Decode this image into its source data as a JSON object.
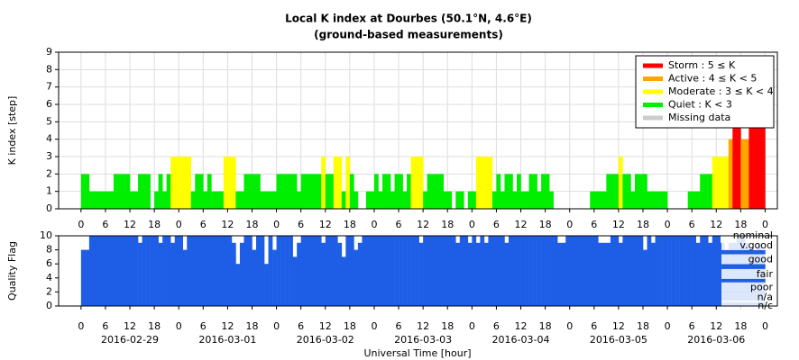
{
  "chart_data": [
    {
      "type": "bar",
      "title": "Local K index at Dourbes (50.1°N, 4.6°E)",
      "subtitle": "(ground-based measurements)",
      "y_label": "K index [step]",
      "x": [
        0,
        1,
        2,
        3,
        4,
        5,
        6,
        7,
        8,
        9,
        10,
        11,
        12,
        13,
        14,
        15,
        16,
        17,
        18,
        19,
        20,
        21,
        22,
        23,
        24,
        25,
        26,
        27,
        28,
        29,
        30,
        31,
        32,
        33,
        34,
        35,
        36,
        37,
        38,
        39,
        40,
        41,
        42,
        43,
        44,
        45,
        46,
        47,
        48,
        49,
        50,
        51,
        52,
        53,
        54,
        55,
        56,
        57,
        58,
        59,
        60,
        61,
        62,
        63,
        64,
        65,
        66,
        67,
        68,
        69,
        70,
        71,
        72,
        73,
        74,
        75,
        76,
        77,
        78,
        79,
        80,
        81,
        82,
        83,
        84,
        85,
        86,
        87,
        88,
        89,
        90,
        91,
        92,
        93,
        94,
        95,
        96,
        97,
        98,
        99,
        100,
        101,
        102,
        103,
        104,
        105,
        106,
        107,
        108,
        109,
        110,
        111,
        112,
        113,
        114,
        115,
        116,
        117,
        118,
        119,
        120,
        121,
        122,
        123,
        124,
        125,
        126,
        127,
        128,
        129,
        130,
        131,
        132,
        133,
        134,
        135,
        136,
        137,
        138,
        139,
        140,
        141,
        142,
        143,
        144,
        145,
        146,
        147,
        148,
        149,
        150,
        151,
        152,
        153,
        154,
        155,
        156,
        157,
        158,
        159,
        160,
        161,
        162,
        163,
        164,
        165,
        166,
        167
      ],
      "values": [
        2,
        2,
        1,
        1,
        1,
        1,
        1,
        1,
        2,
        2,
        2,
        2,
        1,
        1,
        2,
        2,
        2,
        0,
        1,
        2,
        1,
        2,
        3,
        3,
        3,
        3,
        3,
        1,
        2,
        2,
        1,
        2,
        1,
        1,
        1,
        3,
        3,
        3,
        1,
        1,
        2,
        2,
        2,
        2,
        1,
        1,
        1,
        1,
        2,
        2,
        2,
        2,
        2,
        1,
        2,
        2,
        2,
        2,
        2,
        3,
        2,
        2,
        3,
        3,
        1,
        3,
        2,
        1,
        0,
        0,
        1,
        1,
        2,
        1,
        2,
        2,
        1,
        2,
        2,
        1,
        2,
        3,
        3,
        3,
        1,
        2,
        2,
        2,
        2,
        1,
        1,
        0,
        1,
        1,
        0,
        1,
        1,
        3,
        3,
        3,
        3,
        1,
        2,
        1,
        2,
        2,
        1,
        2,
        1,
        1,
        2,
        2,
        1,
        2,
        2,
        1,
        0,
        0,
        0,
        0,
        0,
        0,
        0,
        0,
        0,
        1,
        1,
        1,
        1,
        2,
        2,
        2,
        3,
        2,
        2,
        1,
        2,
        2,
        2,
        1,
        1,
        1,
        1,
        1,
        0,
        0,
        0,
        0,
        0,
        1,
        1,
        1,
        2,
        2,
        2,
        3,
        3,
        3,
        3,
        4,
        5,
        5,
        4,
        4,
        5,
        5,
        5,
        5
      ],
      "legend": [
        {
          "name": "Storm : 5 ≤ K",
          "color": "#ff0000",
          "min": 5
        },
        {
          "name": "Active : 4 ≤ K < 5",
          "color": "#ffa500",
          "min": 4
        },
        {
          "name": "Moderate : 3 ≤ K < 4",
          "color": "#ffff00",
          "min": 3
        },
        {
          "name": "Quiet : K < 3",
          "color": "#00ee00",
          "min": 0
        },
        {
          "name": "Missing data",
          "color": "#cccccc"
        }
      ],
      "legend_position": "upper right",
      "xlim": [
        -5.5,
        171
      ],
      "ylim": [
        0,
        9
      ],
      "yticks": [
        0,
        1,
        2,
        3,
        4,
        5,
        6,
        7,
        8,
        9
      ],
      "xticks": [
        0,
        6,
        12,
        18,
        {
          "value": 24,
          "label": "0"
        },
        {
          "value": 30,
          "label": "6"
        },
        {
          "value": 36,
          "label": "12"
        },
        {
          "value": 42,
          "label": "18"
        },
        {
          "value": 48,
          "label": "0"
        },
        {
          "value": 54,
          "label": "6"
        },
        {
          "value": 60,
          "label": "12"
        },
        {
          "value": 66,
          "label": "18"
        },
        {
          "value": 72,
          "label": "0"
        },
        {
          "value": 78,
          "label": "6"
        },
        {
          "value": 84,
          "label": "12"
        },
        {
          "value": 90,
          "label": "18"
        },
        {
          "value": 96,
          "label": "0"
        },
        {
          "value": 102,
          "label": "6"
        },
        {
          "value": 108,
          "label": "12"
        },
        {
          "value": 114,
          "label": "18"
        },
        {
          "value": 120,
          "label": "0"
        },
        {
          "value": 126,
          "label": "6"
        },
        {
          "value": 132,
          "label": "12"
        },
        {
          "value": 138,
          "label": "18"
        },
        {
          "value": 144,
          "label": "0"
        },
        {
          "value": 150,
          "label": "6"
        },
        {
          "value": 156,
          "label": "12"
        },
        {
          "value": 162,
          "label": "18"
        },
        {
          "value": 168,
          "label": "0"
        }
      ],
      "grid": true
    },
    {
      "type": "bar",
      "y_label": "Quality Flag",
      "x_label": "Universal Time [hour]",
      "color": "#1e5ee6",
      "x": [
        0,
        1,
        2,
        3,
        4,
        5,
        6,
        7,
        8,
        9,
        10,
        11,
        12,
        13,
        14,
        15,
        16,
        17,
        18,
        19,
        20,
        21,
        22,
        23,
        24,
        25,
        26,
        27,
        28,
        29,
        30,
        31,
        32,
        33,
        34,
        35,
        36,
        37,
        38,
        39,
        40,
        41,
        42,
        43,
        44,
        45,
        46,
        47,
        48,
        49,
        50,
        51,
        52,
        53,
        54,
        55,
        56,
        57,
        58,
        59,
        60,
        61,
        62,
        63,
        64,
        65,
        66,
        67,
        68,
        69,
        70,
        71,
        72,
        73,
        74,
        75,
        76,
        77,
        78,
        79,
        80,
        81,
        82,
        83,
        84,
        85,
        86,
        87,
        88,
        89,
        90,
        91,
        92,
        93,
        94,
        95,
        96,
        97,
        98,
        99,
        100,
        101,
        102,
        103,
        104,
        105,
        106,
        107,
        108,
        109,
        110,
        111,
        112,
        113,
        114,
        115,
        116,
        117,
        118,
        119,
        120,
        121,
        122,
        123,
        124,
        125,
        126,
        127,
        128,
        129,
        130,
        131,
        132,
        133,
        134,
        135,
        136,
        137,
        138,
        139,
        140,
        141,
        142,
        143,
        144,
        145,
        146,
        147,
        148,
        149,
        150,
        151,
        152,
        153,
        154,
        155,
        156,
        157,
        158,
        159,
        160,
        161,
        162,
        163,
        164,
        165,
        166,
        167
      ],
      "values": [
        8,
        8,
        10,
        10,
        10,
        10,
        10,
        10,
        10,
        10,
        10,
        10,
        10,
        10,
        9,
        10,
        10,
        10,
        10,
        9,
        10,
        10,
        9,
        10,
        10,
        8,
        10,
        10,
        10,
        10,
        10,
        10,
        10,
        10,
        10,
        10,
        10,
        9,
        6,
        9,
        10,
        10,
        8,
        10,
        10,
        6,
        10,
        8,
        10,
        10,
        10,
        10,
        7,
        9,
        10,
        10,
        10,
        10,
        10,
        9,
        10,
        10,
        10,
        9,
        7,
        10,
        10,
        8,
        9,
        10,
        10,
        10,
        10,
        10,
        10,
        10,
        10,
        10,
        10,
        10,
        10,
        10,
        10,
        9,
        10,
        10,
        10,
        10,
        10,
        10,
        10,
        10,
        9,
        10,
        10,
        9,
        10,
        9,
        10,
        9,
        10,
        10,
        10,
        10,
        9,
        10,
        10,
        10,
        10,
        10,
        10,
        10,
        10,
        10,
        10,
        10,
        10,
        9,
        9,
        10,
        10,
        10,
        10,
        10,
        10,
        10,
        10,
        9,
        9,
        9,
        10,
        10,
        9,
        10,
        10,
        10,
        10,
        10,
        8,
        10,
        9,
        10,
        10,
        10,
        10,
        10,
        10,
        10,
        10,
        10,
        10,
        9,
        10,
        10,
        9,
        10,
        10,
        9,
        8,
        9,
        9,
        10,
        10,
        9,
        8,
        8,
        9,
        8
      ],
      "xlim": [
        -5.5,
        171
      ],
      "ylim": [
        0,
        10
      ],
      "yticks": [
        0,
        2,
        4,
        6,
        8,
        10
      ],
      "y2ticks": [
        {
          "value": 10,
          "label": "nominal"
        },
        {
          "value": 8.6,
          "label": "v.good"
        },
        {
          "value": 6.6,
          "label": "good"
        },
        {
          "value": 4.5,
          "label": "fair"
        },
        {
          "value": 2.6,
          "label": "poor"
        },
        {
          "value": 1.2,
          "label": "n/a"
        },
        {
          "value": 0,
          "label": "n/c"
        }
      ],
      "xticks": [
        0,
        6,
        12,
        18,
        {
          "value": 24,
          "label": "0"
        },
        {
          "value": 30,
          "label": "6"
        },
        {
          "value": 36,
          "label": "12"
        },
        {
          "value": 42,
          "label": "18"
        },
        {
          "value": 48,
          "label": "0"
        },
        {
          "value": 54,
          "label": "6"
        },
        {
          "value": 60,
          "label": "12"
        },
        {
          "value": 66,
          "label": "18"
        },
        {
          "value": 72,
          "label": "0"
        },
        {
          "value": 78,
          "label": "6"
        },
        {
          "value": 84,
          "label": "12"
        },
        {
          "value": 90,
          "label": "18"
        },
        {
          "value": 96,
          "label": "0"
        },
        {
          "value": 102,
          "label": "6"
        },
        {
          "value": 108,
          "label": "12"
        },
        {
          "value": 114,
          "label": "18"
        },
        {
          "value": 120,
          "label": "0"
        },
        {
          "value": 126,
          "label": "6"
        },
        {
          "value": 132,
          "label": "12"
        },
        {
          "value": 138,
          "label": "18"
        },
        {
          "value": 144,
          "label": "0"
        },
        {
          "value": 150,
          "label": "6"
        },
        {
          "value": 156,
          "label": "12"
        },
        {
          "value": 162,
          "label": "18"
        },
        {
          "value": 168,
          "label": "0"
        }
      ],
      "date_ticks": [
        {
          "value": 12,
          "label": "2016-02-29"
        },
        {
          "value": 36,
          "label": "2016-03-01"
        },
        {
          "value": 60,
          "label": "2016-03-02"
        },
        {
          "value": 84,
          "label": "2016-03-03"
        },
        {
          "value": 108,
          "label": "2016-03-04"
        },
        {
          "value": 132,
          "label": "2016-03-05"
        },
        {
          "value": 156,
          "label": "2016-03-06"
        }
      ]
    }
  ]
}
